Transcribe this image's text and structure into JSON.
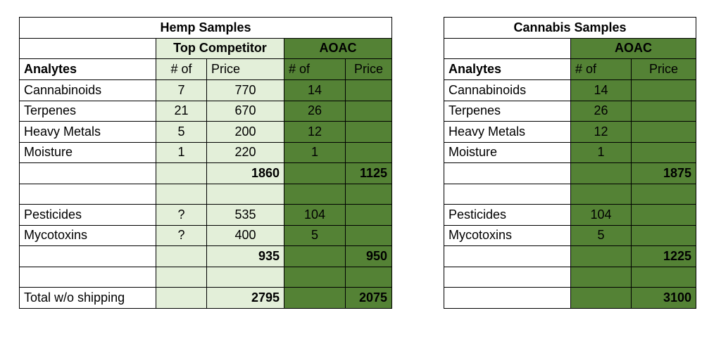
{
  "hemp": {
    "title": "Hemp Samples",
    "group_competitor": "Top Competitor",
    "group_aoac": "AOAC",
    "col_analytes": "Analytes",
    "col_num": "# of",
    "col_price": "Price",
    "rows": [
      {
        "analyte": "Cannabinoids",
        "comp_num": "7",
        "comp_price": "770",
        "aoac_num": "14",
        "aoac_price": ""
      },
      {
        "analyte": "Terpenes",
        "comp_num": "21",
        "comp_price": "670",
        "aoac_num": "26",
        "aoac_price": ""
      },
      {
        "analyte": "Heavy Metals",
        "comp_num": "5",
        "comp_price": "200",
        "aoac_num": "12",
        "aoac_price": ""
      },
      {
        "analyte": "Moisture",
        "comp_num": "1",
        "comp_price": "220",
        "aoac_num": "1",
        "aoac_price": ""
      },
      {
        "analyte": "",
        "comp_num": "",
        "comp_price": "1860",
        "aoac_num": "",
        "aoac_price": "1125"
      },
      {
        "analyte": "",
        "comp_num": "",
        "comp_price": "",
        "aoac_num": "",
        "aoac_price": ""
      },
      {
        "analyte": "Pesticides",
        "comp_num": "?",
        "comp_price": "535",
        "aoac_num": "104",
        "aoac_price": ""
      },
      {
        "analyte": "Mycotoxins",
        "comp_num": "?",
        "comp_price": "400",
        "aoac_num": "5",
        "aoac_price": ""
      },
      {
        "analyte": "",
        "comp_num": "",
        "comp_price": "935",
        "aoac_num": "",
        "aoac_price": "950"
      },
      {
        "analyte": "",
        "comp_num": "",
        "comp_price": "",
        "aoac_num": "",
        "aoac_price": ""
      },
      {
        "analyte": "Total w/o shipping",
        "comp_num": "",
        "comp_price": "2795",
        "aoac_num": "",
        "aoac_price": "2075"
      }
    ]
  },
  "cannabis": {
    "title": "Cannabis Samples",
    "group_aoac": "AOAC",
    "col_analytes": "Analytes",
    "col_num": "# of",
    "col_price": "Price",
    "rows": [
      {
        "analyte": "Cannabinoids",
        "aoac_num": "14",
        "aoac_price": ""
      },
      {
        "analyte": "Terpenes",
        "aoac_num": "26",
        "aoac_price": ""
      },
      {
        "analyte": "Heavy Metals",
        "aoac_num": "12",
        "aoac_price": ""
      },
      {
        "analyte": "Moisture",
        "aoac_num": "1",
        "aoac_price": ""
      },
      {
        "analyte": "",
        "aoac_num": "",
        "aoac_price": "1875"
      },
      {
        "analyte": "",
        "aoac_num": "",
        "aoac_price": ""
      },
      {
        "analyte": "Pesticides",
        "aoac_num": "104",
        "aoac_price": ""
      },
      {
        "analyte": "Mycotoxins",
        "aoac_num": "5",
        "aoac_price": ""
      },
      {
        "analyte": "",
        "aoac_num": "",
        "aoac_price": "1225"
      },
      {
        "analyte": "",
        "aoac_num": "",
        "aoac_price": ""
      },
      {
        "analyte": "",
        "aoac_num": "",
        "aoac_price": "3100"
      }
    ]
  }
}
